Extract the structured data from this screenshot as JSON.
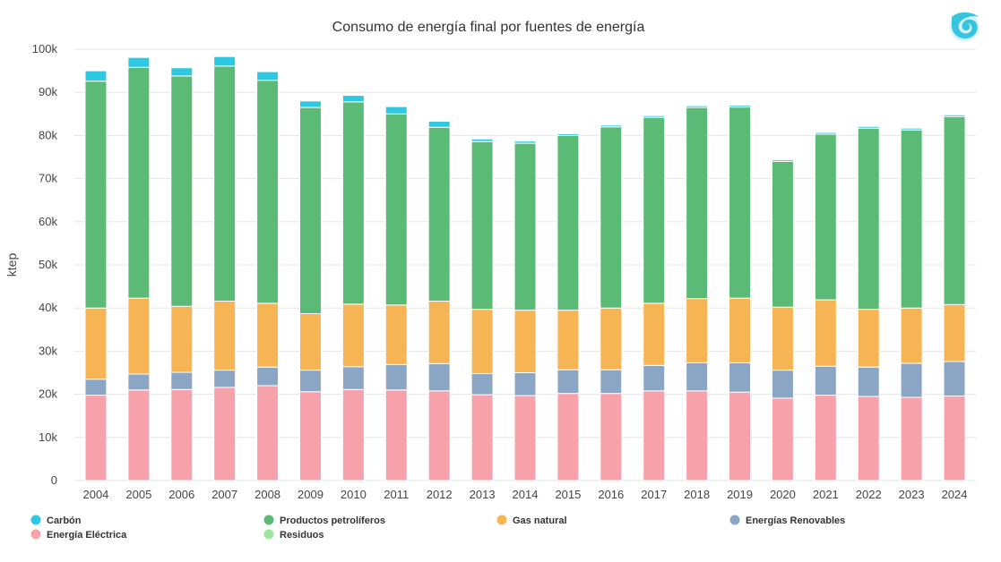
{
  "chart_data": {
    "type": "bar",
    "stacked": true,
    "title": "Consumo de energía final por fuentes de energía",
    "xlabel": "",
    "ylabel": "ktep",
    "ylim": [
      0,
      100000
    ],
    "yticks": [
      0,
      10000,
      20000,
      30000,
      40000,
      50000,
      60000,
      70000,
      80000,
      90000,
      100000
    ],
    "ytick_labels": [
      "0",
      "10k",
      "20k",
      "30k",
      "40k",
      "50k",
      "60k",
      "70k",
      "80k",
      "90k",
      "100k"
    ],
    "grid": true,
    "legend_position": "bottom",
    "categories": [
      "2004",
      "2005",
      "2006",
      "2007",
      "2008",
      "2009",
      "2010",
      "2011",
      "2012",
      "2013",
      "2014",
      "2015",
      "2016",
      "2017",
      "2018",
      "2019",
      "2020",
      "2021",
      "2022",
      "2023",
      "2024"
    ],
    "series": [
      {
        "name": "Energía Eléctrica",
        "color": "#f7a1ab",
        "values": [
          19800,
          21000,
          21100,
          21600,
          22000,
          20600,
          21100,
          21000,
          20800,
          19900,
          19700,
          20200,
          20200,
          20800,
          20800,
          20500,
          19100,
          19800,
          19500,
          19300,
          19600
        ]
      },
      {
        "name": "Energías Renovables",
        "color": "#8aa6c4",
        "values": [
          3700,
          3700,
          4000,
          4000,
          4300,
          5000,
          5300,
          5900,
          6300,
          4900,
          5300,
          5500,
          5500,
          5900,
          6500,
          6800,
          6500,
          6700,
          6800,
          7900,
          8000
        ]
      },
      {
        "name": "Gas natural",
        "color": "#f7b455",
        "values": [
          16500,
          17600,
          15300,
          16000,
          14800,
          13100,
          14500,
          13800,
          14500,
          14900,
          14500,
          13800,
          14300,
          14400,
          14900,
          15000,
          14600,
          15400,
          13400,
          12800,
          13200
        ]
      },
      {
        "name": "Productos petrolíferos",
        "color": "#5bba75",
        "values": [
          52600,
          53500,
          53400,
          54500,
          51700,
          47800,
          46900,
          44300,
          40300,
          38900,
          38700,
          40500,
          42000,
          43100,
          44300,
          44300,
          33800,
          38400,
          42000,
          41300,
          43600
        ]
      },
      {
        "name": "Residuos",
        "color": "#9de89d",
        "values": [
          0,
          0,
          0,
          0,
          0,
          0,
          0,
          0,
          0,
          0,
          0,
          0,
          0,
          0,
          0,
          0,
          0,
          0,
          0,
          0,
          0
        ]
      },
      {
        "name": "Carbón",
        "color": "#2ec8e0",
        "values": [
          2400,
          2300,
          1900,
          2200,
          2000,
          1500,
          1500,
          1700,
          1400,
          600,
          500,
          400,
          400,
          400,
          400,
          400,
          400,
          400,
          400,
          400,
          400
        ]
      }
    ],
    "legend_order": [
      "Carbón",
      "Productos petrolíferos",
      "Gas natural",
      "Energías Renovables",
      "Energía Eléctrica",
      "Residuos"
    ]
  },
  "logo_icon": "swirl-logo-icon"
}
